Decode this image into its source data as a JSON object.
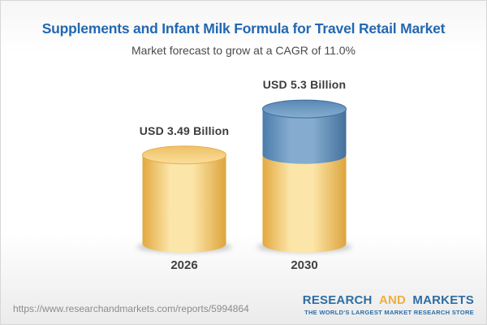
{
  "chart_data": {
    "type": "bar",
    "subtype": "3d-cylinder",
    "title": "Supplements and Infant Milk Formula for Travel Retail Market",
    "subtitle": "Market forecast to grow at a CAGR of 11.0%",
    "cagr": "11.0%",
    "unit": "USD Billion",
    "categories": [
      "2026",
      "2030"
    ],
    "values": [
      3.49,
      5.3
    ],
    "legend": "none",
    "grid": false,
    "bars": [
      {
        "category": "2026",
        "value": 3.49,
        "value_label": "USD 3.49 Billion",
        "segments": [
          {
            "value": 3.49,
            "color_key": "gold"
          }
        ]
      },
      {
        "category": "2030",
        "value": 5.3,
        "value_label": "USD 5.3 Billion",
        "segments": [
          {
            "value": 3.49,
            "color_key": "gold"
          },
          {
            "value": 1.81,
            "color_key": "blue"
          }
        ]
      }
    ],
    "colors": {
      "gold": {
        "edge": "#E2A83E",
        "light": "#FCE5A8",
        "edge2": "#DDA43C",
        "top_a": "#EEC166",
        "top_b": "#FADE9C",
        "stroke": "#E5AE4A"
      },
      "blue": {
        "edge": "#4A7CAC",
        "light": "#85ACCE",
        "edge2": "#44719B",
        "top_a": "#5988B5",
        "top_b": "#87ADCE",
        "stroke": "#3E6D9C"
      }
    }
  },
  "footer": {
    "url": "https://www.researchandmarkets.com/reports/5994864",
    "logo": {
      "part1": "RESEARCH",
      "part2": "AND",
      "part3": "MARKETS",
      "tagline": "THE WORLD'S LARGEST MARKET RESEARCH STORE"
    }
  }
}
